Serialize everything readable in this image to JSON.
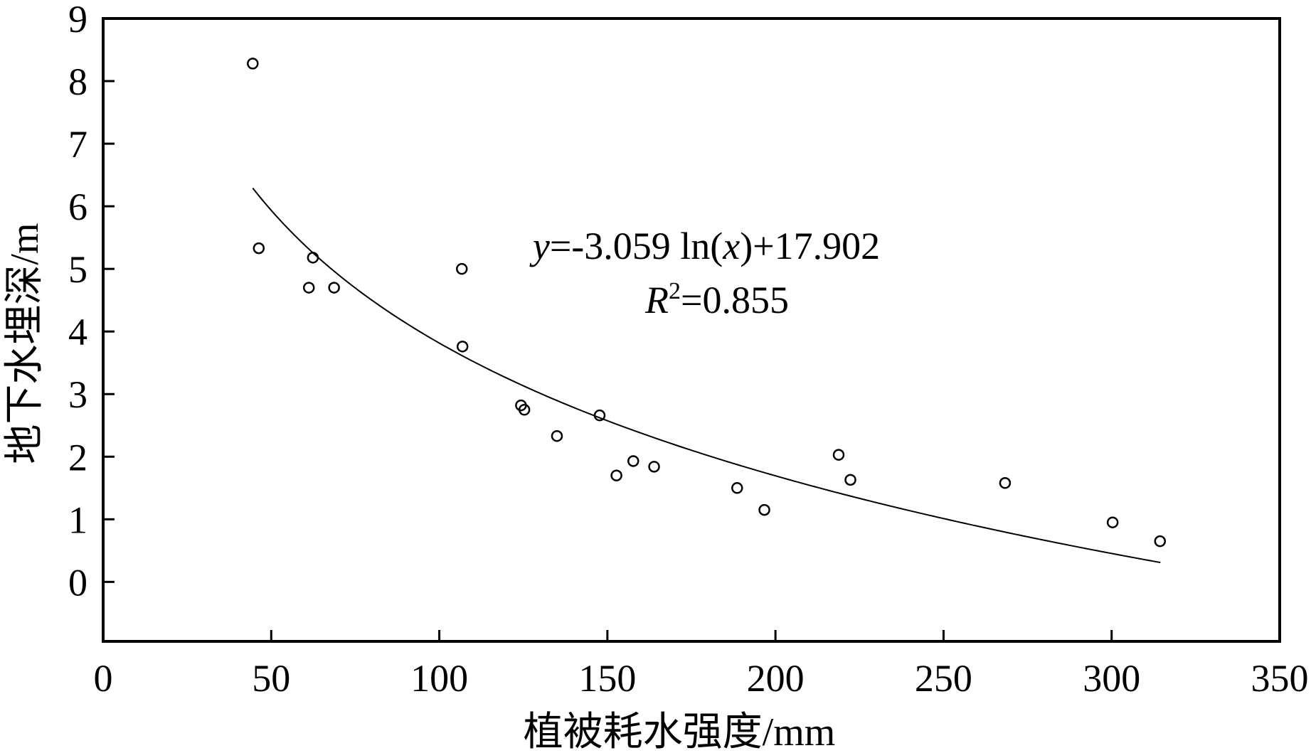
{
  "chart_data": {
    "type": "scatter",
    "title": "",
    "xlabel": "植被耗水强度/mm",
    "ylabel": "地下水埋深/m",
    "xlim": [
      0,
      350
    ],
    "ylim": [
      -0.95,
      9
    ],
    "x_ticks": [
      "0",
      "50",
      "100",
      "150",
      "200",
      "250",
      "300",
      "350"
    ],
    "y_ticks": [
      "0",
      "1",
      "2",
      "3",
      "4",
      "5",
      "6",
      "7",
      "8",
      "9"
    ],
    "grid": false,
    "points": [
      {
        "x": 44.5,
        "y": 8.28
      },
      {
        "x": 46.3,
        "y": 5.33
      },
      {
        "x": 61.2,
        "y": 4.7
      },
      {
        "x": 62.4,
        "y": 5.18
      },
      {
        "x": 68.7,
        "y": 4.7
      },
      {
        "x": 106.7,
        "y": 5.0
      },
      {
        "x": 106.9,
        "y": 3.76
      },
      {
        "x": 124.3,
        "y": 2.82
      },
      {
        "x": 125.3,
        "y": 2.75
      },
      {
        "x": 135.0,
        "y": 2.33
      },
      {
        "x": 147.7,
        "y": 2.66
      },
      {
        "x": 152.7,
        "y": 1.7
      },
      {
        "x": 157.7,
        "y": 1.93
      },
      {
        "x": 163.9,
        "y": 1.84
      },
      {
        "x": 188.6,
        "y": 1.5
      },
      {
        "x": 196.7,
        "y": 1.15
      },
      {
        "x": 218.8,
        "y": 2.03
      },
      {
        "x": 222.3,
        "y": 1.63
      },
      {
        "x": 268.3,
        "y": 1.58
      },
      {
        "x": 300.3,
        "y": 0.95
      },
      {
        "x": 314.4,
        "y": 0.65
      }
    ],
    "fit": {
      "type": "log",
      "a": -3.059,
      "b": 17.902,
      "x_range": [
        44.5,
        314.5
      ]
    },
    "annotation": {
      "eq_var": "y",
      "eq_mid": "=-3.059 ln(",
      "eq_x": "x",
      "eq_end": ")+17.902",
      "r2_var": "R",
      "r2_sup": "2",
      "r2_end": "=0.855"
    }
  }
}
